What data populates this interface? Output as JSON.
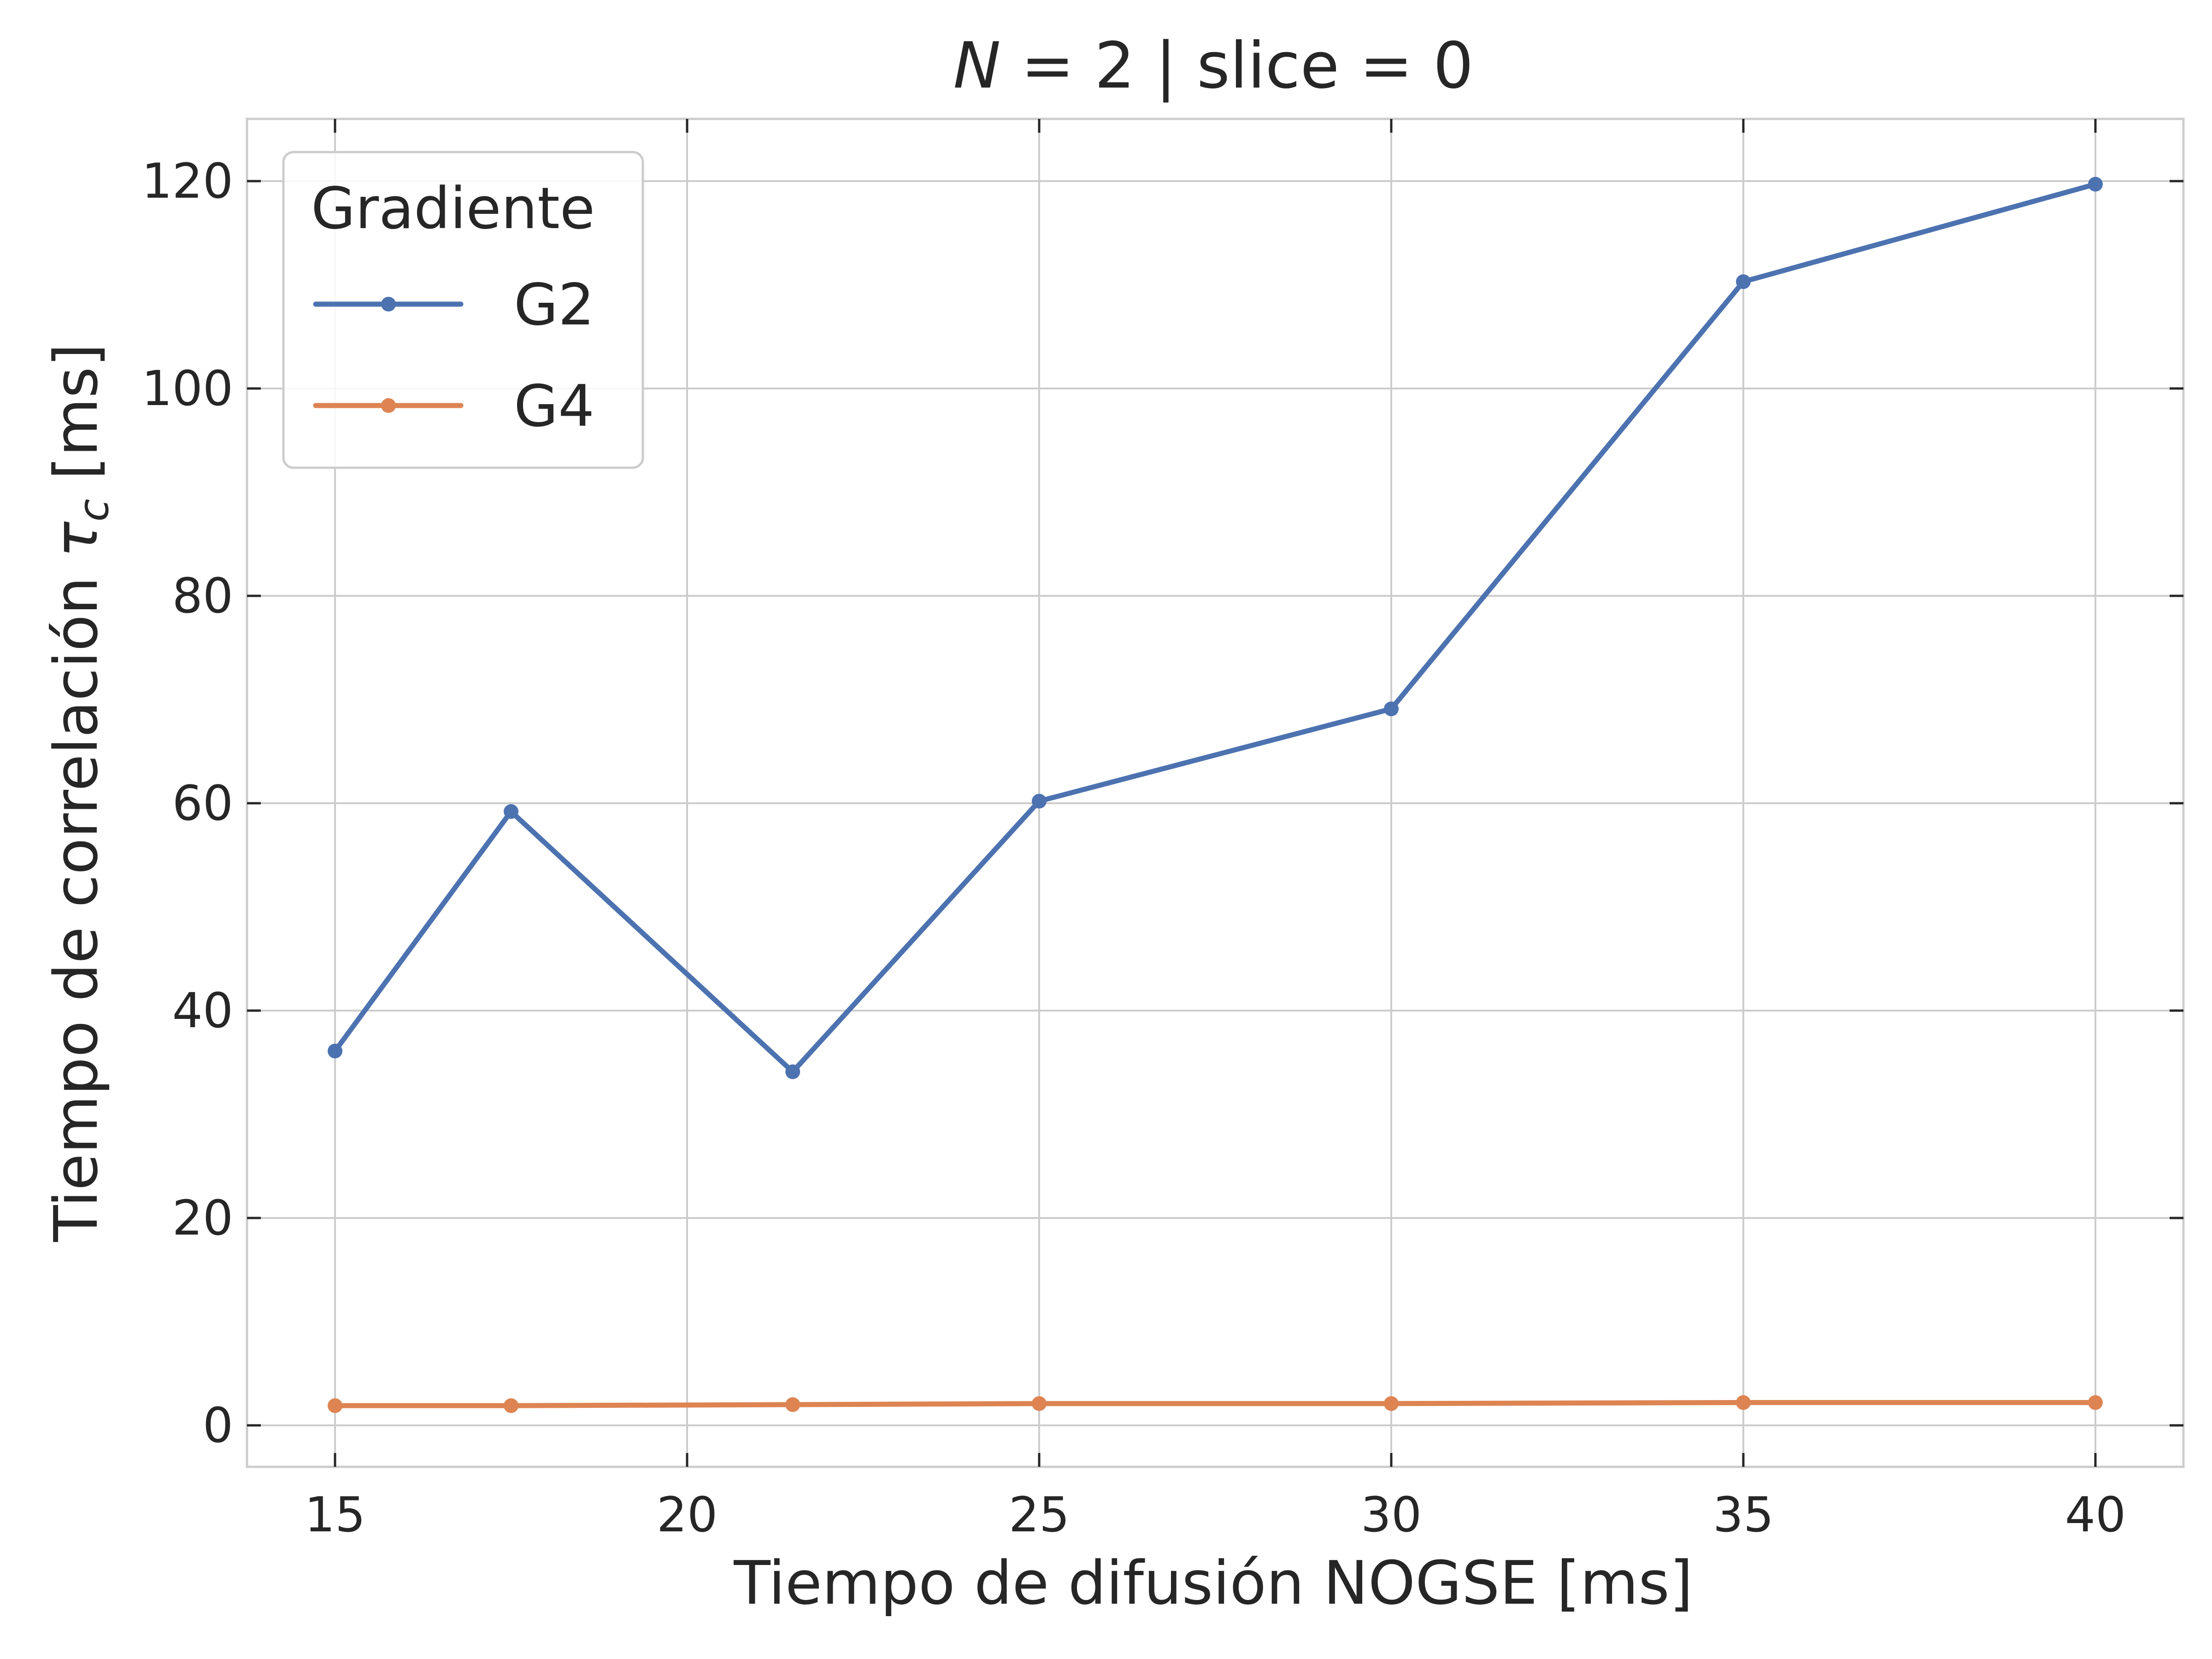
{
  "chart_data": {
    "type": "line",
    "title": {
      "var": "N",
      "rest": " = 2 | slice = 0"
    },
    "xlabel": "Tiempo de difusión NOGSE [ms]",
    "ylabel": {
      "text": "Tiempo de correlación ",
      "symbol": "τ",
      "sub": "c",
      "unit": " [ms]"
    },
    "x": [
      15,
      17.5,
      21.5,
      25,
      30,
      35,
      40
    ],
    "series": [
      {
        "name": "G2",
        "color": "#4c72b0",
        "values": [
          36.1,
          59.2,
          34.1,
          60.2,
          69.1,
          110.3,
          119.7
        ]
      },
      {
        "name": "G4",
        "color": "#dd8452",
        "values": [
          1.9,
          1.9,
          2.0,
          2.1,
          2.1,
          2.2,
          2.2
        ]
      }
    ],
    "xlim": [
      13.75,
      41.25
    ],
    "ylim": [
      -4,
      126
    ],
    "xticks": [
      15,
      20,
      25,
      30,
      35,
      40
    ],
    "yticks": [
      0,
      20,
      40,
      60,
      80,
      100,
      120
    ],
    "grid": true,
    "legend": {
      "title": "Gradiente",
      "placement": "top-left"
    }
  }
}
